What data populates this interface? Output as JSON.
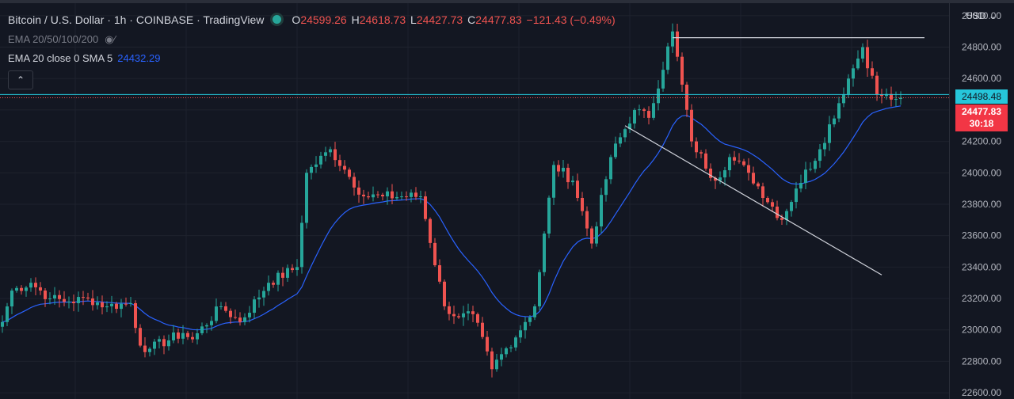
{
  "legend": {
    "symbol": "Bitcoin / U.S. Dollar · 1h · COINBASE · TradingView",
    "open_label": "O",
    "open": "24599.26",
    "high_label": "H",
    "high": "24618.73",
    "low_label": "L",
    "low": "24427.73",
    "close_label": "C",
    "close": "24477.83",
    "change": "−121.43 (−0.49%)",
    "indicator1": "EMA 20/50/100/200",
    "indicator2": "EMA 20 close 0 SMA 5",
    "indicator2_value": "24432.29",
    "collapse_icon": "chevron-up-icon",
    "hidden_icon": "eye-crossed-icon"
  },
  "axis": {
    "currency": "USD"
  },
  "price_tags": {
    "ema": "24498.48",
    "last": "24477.83",
    "countdown": "30:18"
  },
  "colors": {
    "background": "#131722",
    "up": "#26a69a",
    "down": "#ef5350",
    "ema": "#2962ff",
    "ema_line": "#26c6da",
    "trendline": "#d1d4dc"
  },
  "chart_data": {
    "type": "candlestick",
    "symbol": "BTCUSD",
    "interval": "1h",
    "ylim": [
      22560,
      25080
    ],
    "y_ticks": [
      22600,
      22800,
      23000,
      23200,
      23400,
      23600,
      23800,
      24000,
      24200,
      24400,
      24600,
      24800,
      25000
    ],
    "y_tick_labels": [
      "22600.00",
      "22800.00",
      "23000.00",
      "23200.00",
      "23400.00",
      "23600.00",
      "23800.00",
      "24000.00",
      "24200.00",
      "24400.00",
      "24600.00",
      "24800.00",
      "25000.00"
    ],
    "grid": true,
    "candle_count": 190,
    "anchor_closes": [
      [
        0,
        23050
      ],
      [
        2,
        23250
      ],
      [
        6,
        23300
      ],
      [
        10,
        23200
      ],
      [
        14,
        23180
      ],
      [
        18,
        23200
      ],
      [
        22,
        23150
      ],
      [
        27,
        23170
      ],
      [
        29,
        22900
      ],
      [
        31,
        22880
      ],
      [
        38,
        22980
      ],
      [
        40,
        22940
      ],
      [
        46,
        23150
      ],
      [
        50,
        23050
      ],
      [
        56,
        23300
      ],
      [
        62,
        23400
      ],
      [
        64,
        24000
      ],
      [
        69,
        24150
      ],
      [
        72,
        24020
      ],
      [
        76,
        23850
      ],
      [
        80,
        23850
      ],
      [
        88,
        23850
      ],
      [
        93,
        23150
      ],
      [
        96,
        23080
      ],
      [
        99,
        23100
      ],
      [
        103,
        22750
      ],
      [
        110,
        23050
      ],
      [
        112,
        23150
      ],
      [
        116,
        24050
      ],
      [
        120,
        23950
      ],
      [
        124,
        23550
      ],
      [
        128,
        24100
      ],
      [
        133,
        24400
      ],
      [
        136,
        24350
      ],
      [
        141,
        24900
      ],
      [
        145,
        24200
      ],
      [
        150,
        23950
      ],
      [
        153,
        24100
      ],
      [
        157,
        24000
      ],
      [
        164,
        23700
      ],
      [
        167,
        23900
      ],
      [
        172,
        24150
      ],
      [
        178,
        24600
      ],
      [
        181,
        24800
      ],
      [
        184,
        24500
      ],
      [
        188,
        24470
      ]
    ],
    "close": 24477.83,
    "ema20_last": 24432.29,
    "horizontal_line": 24498.48,
    "trendlines": [
      {
        "from": [
          141,
          24860
        ],
        "to": [
          194,
          24860
        ]
      },
      {
        "from": [
          131,
          24300
        ],
        "to": [
          185,
          23350
        ]
      }
    ]
  }
}
